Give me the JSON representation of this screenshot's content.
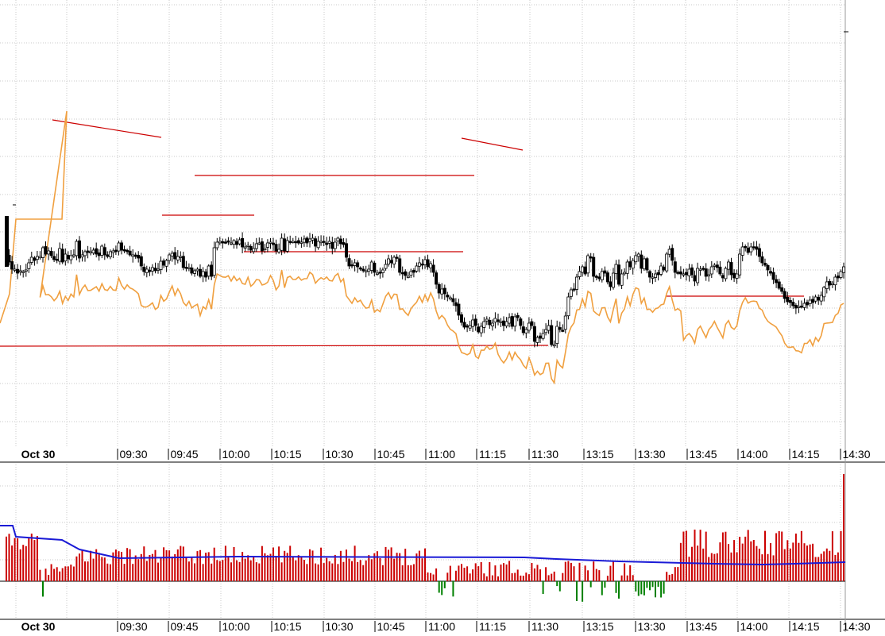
{
  "chart_data": [
    {
      "type": "candlestick",
      "panel": "price",
      "grid": true,
      "x_tick_labels": [
        "Oct 30",
        "09:30",
        "09:45",
        "10:00",
        "10:15",
        "10:30",
        "10:45",
        "11:00",
        "11:15",
        "11:30",
        "13:15",
        "13:30",
        "13:45",
        "14:00",
        "14:15",
        "14:30"
      ],
      "y_axis_labels_shown": false,
      "close_series": [
        322,
        330,
        339,
        339,
        344,
        341,
        342,
        340,
        331,
        324,
        328,
        323,
        323,
        312,
        320,
        316,
        322,
        327,
        328,
        313,
        330,
        320,
        326,
        322,
        321,
        304,
        325,
        321,
        317,
        318,
        317,
        315,
        320,
        322,
        310,
        321,
        323,
        317,
        316,
        317,
        306,
        315,
        316,
        317,
        321,
        321,
        323,
        325,
        335,
        342,
        339,
        342,
        337,
        341,
        339,
        329,
        334,
        328,
        321,
        319,
        326,
        323,
        323,
        337,
        338,
        337,
        344,
        341,
        339,
        348,
        342,
        349,
        335,
        348,
        312,
        305,
        304,
        306,
        305,
        305,
        306,
        303,
        308,
        302,
        311,
        311,
        309,
        315,
        313,
        307,
        306,
        316,
        313,
        306,
        305,
        308,
        316,
        314,
        300,
        316,
        303,
        304,
        304,
        305,
        306,
        305,
        301,
        306,
        301,
        300,
        310,
        304,
        304,
        305,
        308,
        304,
        313,
        305,
        300,
        307,
        308,
        324,
        335,
        334,
        331,
        336,
        338,
        341,
        341,
        339,
        330,
        343,
        344,
        344,
        340,
        333,
        326,
        331,
        324,
        324,
        343,
        344,
        347,
        348,
        342,
        343,
        335,
        331,
        334,
        327,
        336,
        332,
        343,
        358,
        369,
        364,
        370,
        374,
        375,
        380,
        385,
        397,
        406,
        412,
        412,
        410,
        403,
        410,
        418,
        411,
        405,
        402,
        409,
        407,
        401,
        405,
        405,
        410,
        405,
        400,
        411,
        399,
        400,
        410,
        419,
        415,
        407,
        410,
        430,
        425,
        426,
        420,
        415,
        410,
        434,
        434,
        411,
        415,
        416,
        398,
        374,
        365,
        364,
        349,
        342,
        336,
        345,
        322,
        325,
        348,
        348,
        351,
        342,
        344,
        355,
        361,
        344,
        333,
        358,
        345,
        343,
        330,
        336,
        328,
        322,
        320,
        338,
        326,
        340,
        349,
        349,
        345,
        346,
        335,
        340,
        320,
        314,
        328,
        343,
        344,
        345,
        345,
        346,
        339,
        346,
        354,
        338,
        339,
        339,
        348,
        346,
        336,
        334,
        337,
        345,
        350,
        338,
        330,
        346,
        350,
        345,
        320,
        311,
        311,
        318,
        311,
        312,
        314,
        323,
        331,
        334,
        340,
        344,
        352,
        356,
        363,
        367,
        376,
        380,
        381,
        385,
        388,
        386,
        386,
        382,
        384,
        378,
        381,
        374,
        378,
        372,
        362,
        355,
        359,
        357,
        349,
        350,
        342,
        336
      ],
      "volume_pane": {
        "type": "bar",
        "description": "volume histogram (red up / green down) with average line",
        "colors": {
          "up": "#cc0000",
          "down": "#008000",
          "average_line": "#1a1ad6"
        }
      },
      "lines": [
        {
          "name": "average",
          "color": "#f0a040"
        },
        {
          "name": "reference level",
          "color": "#cc0000"
        },
        {
          "name": "trend line",
          "color": "#cc0000"
        }
      ]
    },
    {
      "type": "bar",
      "panel": "volume",
      "x_tick_labels": [
        "Oct 30",
        "09:30",
        "09:45",
        "10:00",
        "10:15",
        "10:30",
        "10:45",
        "11:00",
        "11:15",
        "11:30",
        "13:15",
        "13:30",
        "13:45",
        "14:00",
        "14:15",
        "14:30"
      ]
    }
  ]
}
